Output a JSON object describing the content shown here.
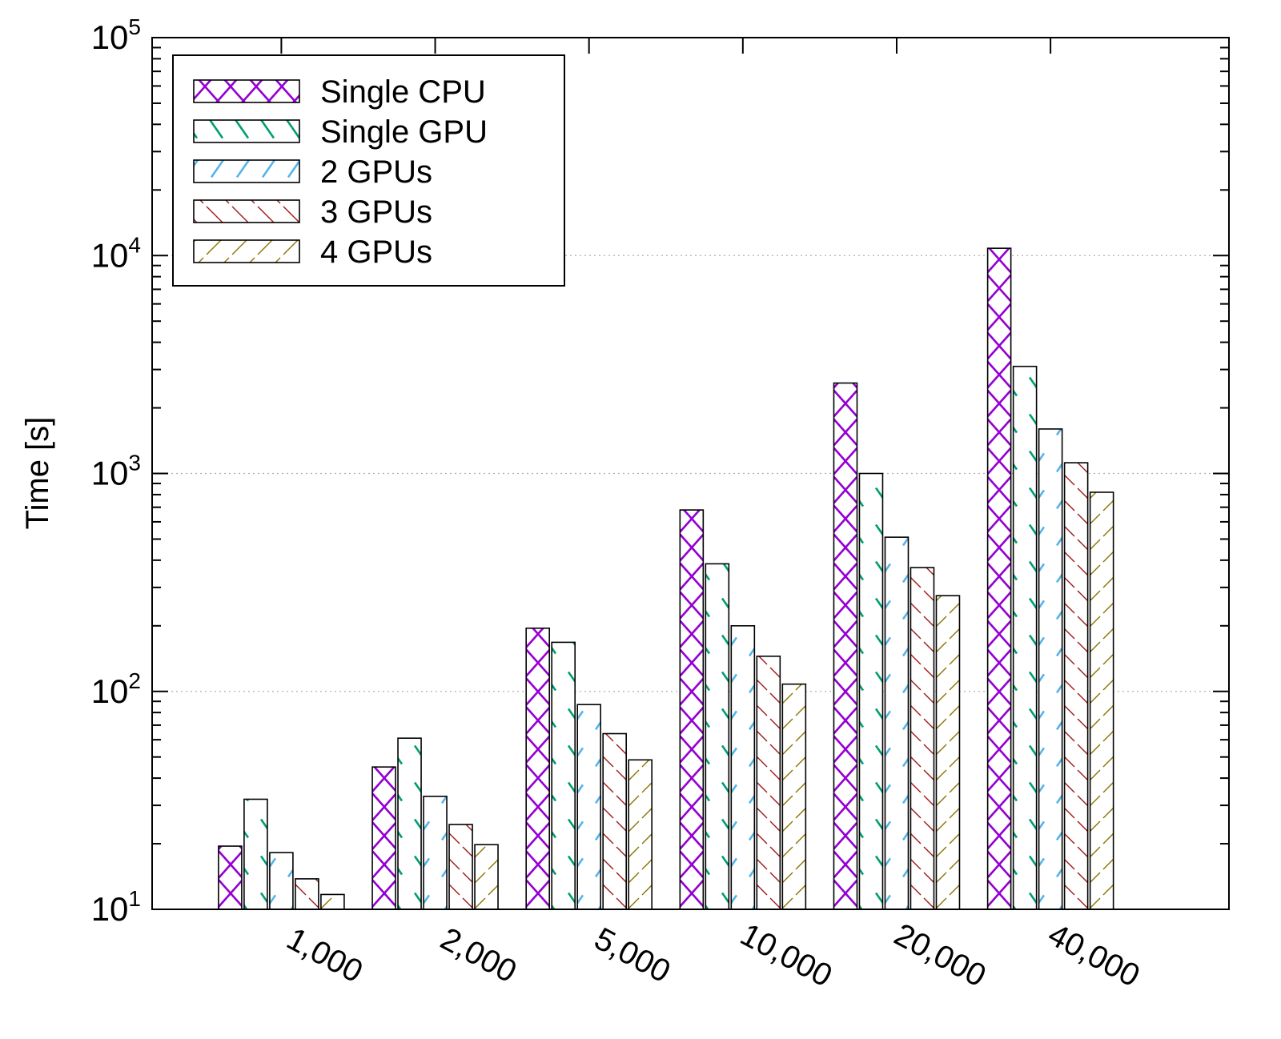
{
  "chart_data": {
    "type": "bar",
    "ylabel": "Time [s]",
    "xlabel": "",
    "title": "",
    "yscale": "log",
    "ylim": [
      10,
      100000
    ],
    "ytick_major": [
      {
        "mant": "10",
        "exp": "1"
      },
      {
        "mant": "10",
        "exp": "2"
      },
      {
        "mant": "10",
        "exp": "3"
      },
      {
        "mant": "10",
        "exp": "4"
      },
      {
        "mant": "10",
        "exp": "5"
      }
    ],
    "grid": "horizontal-dotted-at-decades",
    "legend_position": "top-left",
    "categories": [
      "1,000",
      "2,000",
      "5,000",
      "10,000",
      "20,000",
      "40,000"
    ],
    "series": [
      {
        "name": "Single CPU",
        "color": "#9400d3",
        "pattern": "cross",
        "values": [
          19.5,
          45,
          195,
          680,
          2600,
          10800
        ]
      },
      {
        "name": "Single GPU",
        "color": "#009e73",
        "pattern": "backslash-sparse",
        "values": [
          32,
          61,
          168,
          385,
          1000,
          3100
        ]
      },
      {
        "name": "2 GPUs",
        "color": "#56b4e9",
        "pattern": "slash-sparse",
        "values": [
          18.2,
          33,
          87,
          200,
          510,
          1600
        ]
      },
      {
        "name": "3 GPUs",
        "color": "#a0191c",
        "pattern": "backslash-dense",
        "values": [
          13.8,
          24.5,
          64,
          145,
          370,
          1120
        ]
      },
      {
        "name": "4 GPUs",
        "color": "#8b7500",
        "pattern": "slash-dense",
        "values": [
          11.7,
          19.8,
          48.5,
          108,
          275,
          820
        ]
      }
    ]
  }
}
